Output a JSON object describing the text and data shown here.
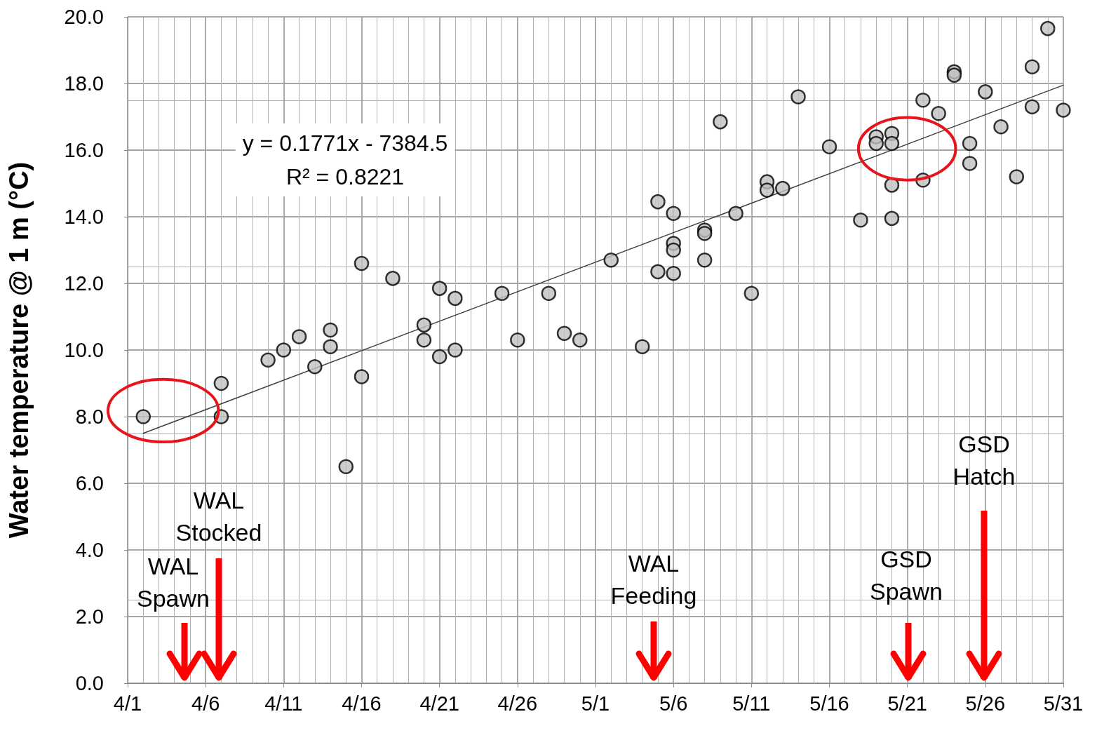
{
  "chart_data": {
    "type": "scatter",
    "ylabel": "Water temperature @ 1 m (°C)",
    "x": [
      "--04-02",
      "--04-07",
      "--04-07",
      "--04-10",
      "--04-11",
      "--04-12",
      "--04-13",
      "--04-14",
      "--04-14",
      "--04-15",
      "--04-16",
      "--04-16",
      "--04-18",
      "--04-20",
      "--04-20",
      "--04-21",
      "--04-21",
      "--04-22",
      "--04-22",
      "--04-25",
      "--04-26",
      "--04-28",
      "--04-29",
      "--04-30",
      "--05-02",
      "--05-04",
      "--05-05",
      "--05-05",
      "--05-06",
      "--05-06",
      "--05-06",
      "--05-06",
      "--05-08",
      "--05-08",
      "--05-08",
      "--05-09",
      "--05-10",
      "--05-11",
      "--05-12",
      "--05-12",
      "--05-13",
      "--05-14",
      "--05-16",
      "--05-18",
      "--05-19",
      "--05-19",
      "--05-20",
      "--05-20",
      "--05-20",
      "--05-20",
      "--05-22",
      "--05-22",
      "--05-23",
      "--05-24",
      "--05-24",
      "--05-25",
      "--05-25",
      "--05-26",
      "--05-27",
      "--05-28",
      "--05-29",
      "--05-29",
      "--05-30",
      "--05-31"
    ],
    "series": [
      {
        "marker": "circle",
        "color": "#c0c0c0",
        "values": [
          8.0,
          9.0,
          8.0,
          9.7,
          10.0,
          10.4,
          9.5,
          10.6,
          10.1,
          6.5,
          12.6,
          9.2,
          12.15,
          10.75,
          10.3,
          11.85,
          9.8,
          11.55,
          10.0,
          11.7,
          10.3,
          11.7,
          10.5,
          10.3,
          12.7,
          10.1,
          14.45,
          12.35,
          14.1,
          13.2,
          13.0,
          12.3,
          13.6,
          13.5,
          12.7,
          16.85,
          14.1,
          11.7,
          15.05,
          14.8,
          14.85,
          17.6,
          16.1,
          13.9,
          16.4,
          16.2,
          16.5,
          16.2,
          14.95,
          13.95,
          17.5,
          15.1,
          17.1,
          18.35,
          18.25,
          16.2,
          15.6,
          17.75,
          16.7,
          15.2,
          18.5,
          17.3,
          19.65,
          17.2
        ]
      },
      {
        "type": "line",
        "marker": "none",
        "color": "#404040",
        "x": [
          "--04-02",
          "--05-31"
        ],
        "values": [
          7.5,
          17.95
        ]
      }
    ],
    "xlim": [
      "--04-01",
      "--05-31"
    ],
    "xticks": [
      {
        "value": "--04-01",
        "label": "4/1"
      },
      {
        "value": "--04-06",
        "label": "4/6"
      },
      {
        "value": "--04-11",
        "label": "4/11"
      },
      {
        "value": "--04-16",
        "label": "4/16"
      },
      {
        "value": "--04-21",
        "label": "4/21"
      },
      {
        "value": "--04-26",
        "label": "4/26"
      },
      {
        "value": "--05-01",
        "label": "5/1"
      },
      {
        "value": "--05-06",
        "label": "5/6"
      },
      {
        "value": "--05-11",
        "label": "5/11"
      },
      {
        "value": "--05-16",
        "label": "5/16"
      },
      {
        "value": "--05-21",
        "label": "5/21"
      },
      {
        "value": "--05-26",
        "label": "5/26"
      },
      {
        "value": "--05-31",
        "label": "5/31"
      }
    ],
    "ylim": [
      0,
      20
    ],
    "yticks": [
      {
        "value": 0,
        "label": "0.0"
      },
      {
        "value": 2,
        "label": "2.0"
      },
      {
        "value": 4,
        "label": "4.0"
      },
      {
        "value": 6,
        "label": "6.0"
      },
      {
        "value": 8,
        "label": "8.0"
      },
      {
        "value": 10,
        "label": "10.0"
      },
      {
        "value": 12,
        "label": "12.0"
      },
      {
        "value": 14,
        "label": "14.0"
      },
      {
        "value": 16,
        "label": "16.0"
      },
      {
        "value": 18,
        "label": "18.0"
      },
      {
        "value": 20,
        "label": "20.0"
      }
    ],
    "grid": true,
    "line_style": "solid",
    "annotations": [
      "y = 0.1771x - 7384.5\nR² = 0.8221",
      "WAL\nSpawn",
      "WAL\nStocked",
      "WAL\nFeeding",
      "GSD\nSpawn",
      "GSD\nHatch"
    ]
  }
}
